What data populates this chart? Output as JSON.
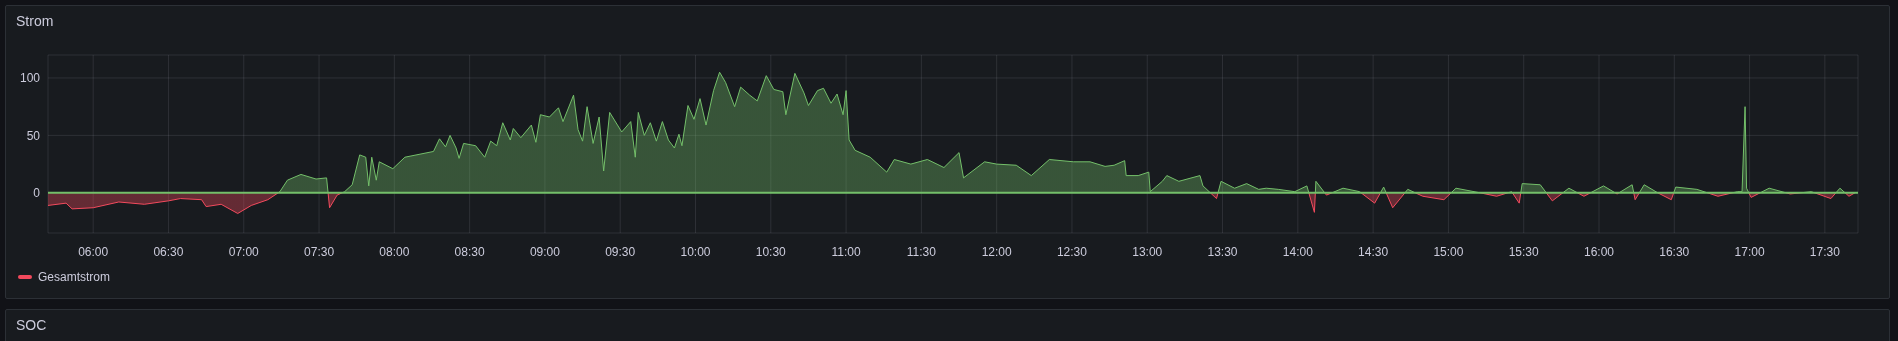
{
  "chart_data": [
    {
      "type": "area",
      "title": "Strom",
      "x": [
        5.7,
        5.82,
        5.86,
        6,
        6.17,
        6.34,
        6.5,
        6.58,
        6.72,
        6.75,
        6.85,
        6.96,
        7.05,
        7.16,
        7.24,
        7.29,
        7.38,
        7.48,
        7.55,
        7.57,
        7.62,
        7.67,
        7.72,
        7.77,
        7.81,
        7.83,
        7.85,
        7.88,
        7.9,
        7.99,
        8.07,
        8.26,
        8.3,
        8.34,
        8.37,
        8.41,
        8.43,
        8.46,
        8.54,
        8.6,
        8.64,
        8.68,
        8.72,
        8.77,
        8.79,
        8.84,
        8.91,
        8.94,
        8.97,
        9.03,
        9.09,
        9.12,
        9.19,
        9.22,
        9.25,
        9.28,
        9.32,
        9.36,
        9.39,
        9.43,
        9.51,
        9.57,
        9.6,
        9.62,
        9.66,
        9.7,
        9.74,
        9.78,
        9.82,
        9.86,
        9.89,
        9.91,
        9.95,
        9.99,
        10.03,
        10.07,
        10.12,
        10.16,
        10.2,
        10.26,
        10.3,
        10.36,
        10.41,
        10.47,
        10.52,
        10.58,
        10.6,
        10.66,
        10.72,
        10.75,
        10.81,
        10.85,
        10.9,
        10.94,
        10.98,
        11,
        11.02,
        11.06,
        11.16,
        11.27,
        11.32,
        11.43,
        11.54,
        11.65,
        11.75,
        11.78,
        11.92,
        12,
        12.13,
        12.23,
        12.35,
        12.51,
        12.62,
        12.72,
        12.78,
        12.85,
        12.86,
        12.94,
        13.01,
        13.02,
        13.1,
        13.13,
        13.21,
        13.35,
        13.37,
        13.46,
        13.49,
        13.58,
        13.66,
        13.74,
        13.79,
        13.87,
        13.98,
        14.06,
        14.11,
        14.12,
        14.19,
        14.3,
        14.41,
        14.51,
        14.57,
        14.63,
        14.73,
        14.83,
        14.97,
        15.05,
        15.21,
        15.32,
        15.42,
        15.47,
        15.49,
        15.61,
        15.69,
        15.8,
        15.9,
        16.03,
        16.12,
        16.22,
        16.24,
        16.3,
        16.39,
        16.48,
        16.51,
        16.65,
        16.79,
        16.92,
        16.95,
        16.97,
        16.98,
        17.01,
        17.13,
        17.27,
        17.41,
        17.54,
        17.6,
        17.66,
        17.7
      ],
      "series": [
        {
          "name": "Gesamtstrom",
          "color": "#f2495c",
          "values": [
            -11,
            -9,
            -14,
            -13,
            -8,
            -10,
            -7,
            -5,
            -6,
            -12,
            -10,
            -18,
            -11,
            -6,
            1,
            11,
            16,
            12,
            13,
            -13,
            -2,
            1,
            7,
            33,
            31,
            6,
            31,
            11,
            27,
            21,
            31,
            36,
            47,
            40,
            50,
            39,
            30,
            43,
            41,
            31,
            45,
            41,
            61,
            46,
            56,
            48,
            59,
            44,
            68,
            66,
            74,
            62,
            85,
            55,
            45,
            75,
            43,
            66,
            19,
            70,
            53,
            62,
            31,
            70,
            50,
            61,
            45,
            62,
            46,
            39,
            51,
            41,
            76,
            64,
            82,
            59,
            89,
            105,
            96,
            75,
            92,
            85,
            80,
            102,
            90,
            88,
            68,
            104,
            87,
            76,
            89,
            91,
            78,
            86,
            68,
            89,
            46,
            37,
            31,
            18,
            29,
            25,
            29,
            22,
            35,
            13,
            27,
            25,
            24,
            15,
            29,
            27,
            27,
            23,
            24,
            28,
            15,
            15,
            18,
            1,
            10,
            15,
            10,
            15,
            6,
            -5,
            10,
            4,
            8,
            3,
            4,
            3,
            1,
            6,
            -17,
            10,
            -2,
            4,
            1,
            -9,
            5,
            -13,
            3,
            -3,
            -6,
            4,
            0,
            -3,
            1,
            -9,
            8,
            7,
            -7,
            4,
            -3,
            6,
            -1,
            7,
            -6,
            7,
            0,
            -6,
            5,
            3,
            -3,
            1,
            1,
            75,
            4,
            -4,
            4,
            -1,
            1,
            -5,
            4,
            -3,
            0
          ]
        }
      ],
      "xlim": [
        5.7,
        17.72
      ],
      "xticks": [
        {
          "value": 6,
          "label": "06:00"
        },
        {
          "value": 6.5,
          "label": "06:30"
        },
        {
          "value": 7,
          "label": "07:00"
        },
        {
          "value": 7.5,
          "label": "07:30"
        },
        {
          "value": 8,
          "label": "08:00"
        },
        {
          "value": 8.5,
          "label": "08:30"
        },
        {
          "value": 9,
          "label": "09:00"
        },
        {
          "value": 9.5,
          "label": "09:30"
        },
        {
          "value": 10,
          "label": "10:00"
        },
        {
          "value": 10.5,
          "label": "10:30"
        },
        {
          "value": 11,
          "label": "11:00"
        },
        {
          "value": 11.5,
          "label": "11:30"
        },
        {
          "value": 12,
          "label": "12:00"
        },
        {
          "value": 12.5,
          "label": "12:30"
        },
        {
          "value": 13,
          "label": "13:00"
        },
        {
          "value": 13.5,
          "label": "13:30"
        },
        {
          "value": 14,
          "label": "14:00"
        },
        {
          "value": 14.5,
          "label": "14:30"
        },
        {
          "value": 15,
          "label": "15:00"
        },
        {
          "value": 15.5,
          "label": "15:30"
        },
        {
          "value": 16,
          "label": "16:00"
        },
        {
          "value": 16.5,
          "label": "16:30"
        },
        {
          "value": 17,
          "label": "17:00"
        },
        {
          "value": 17.5,
          "label": "17:30"
        }
      ],
      "ylim": [
        -35,
        120
      ],
      "yticks": [
        0,
        50,
        100
      ],
      "grid": true,
      "legend": "bottom left",
      "ref_lines": [
        {
          "axis": "y",
          "value": 0,
          "color": "#73bf69"
        }
      ]
    },
    {
      "type": "other",
      "title": "SOC"
    }
  ]
}
